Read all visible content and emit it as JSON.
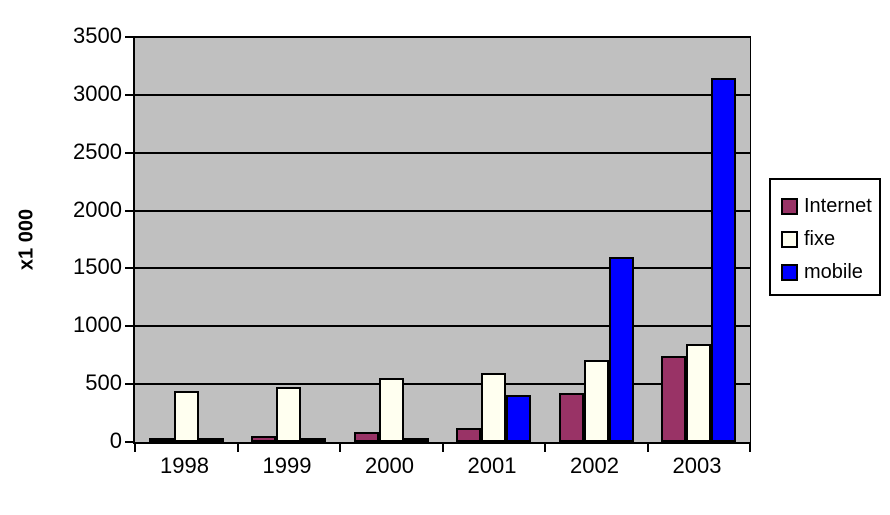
{
  "chart_data": {
    "type": "bar",
    "title": "",
    "xlabel": "",
    "ylabel": "x1 000",
    "categories": [
      "1998",
      "1999",
      "2000",
      "2001",
      "2002",
      "2003"
    ],
    "series": [
      {
        "name": "Internet",
        "color": "#993366",
        "values": [
          30,
          50,
          85,
          120,
          420,
          740
        ]
      },
      {
        "name": "fixe",
        "color": "#FFFFF0",
        "values": [
          440,
          475,
          550,
          600,
          710,
          850
        ]
      },
      {
        "name": "mobile",
        "color": "#0000FF",
        "values": [
          15,
          35,
          30,
          410,
          1600,
          3150
        ]
      }
    ],
    "ylim": [
      0,
      3500
    ],
    "ytick_step": 500,
    "grid": true,
    "legend_position": "right",
    "colors": {
      "plot_background": "#C0C0C0",
      "axis": "#000000",
      "gridline": "#000000",
      "page_background": "#FFFFFF"
    }
  }
}
